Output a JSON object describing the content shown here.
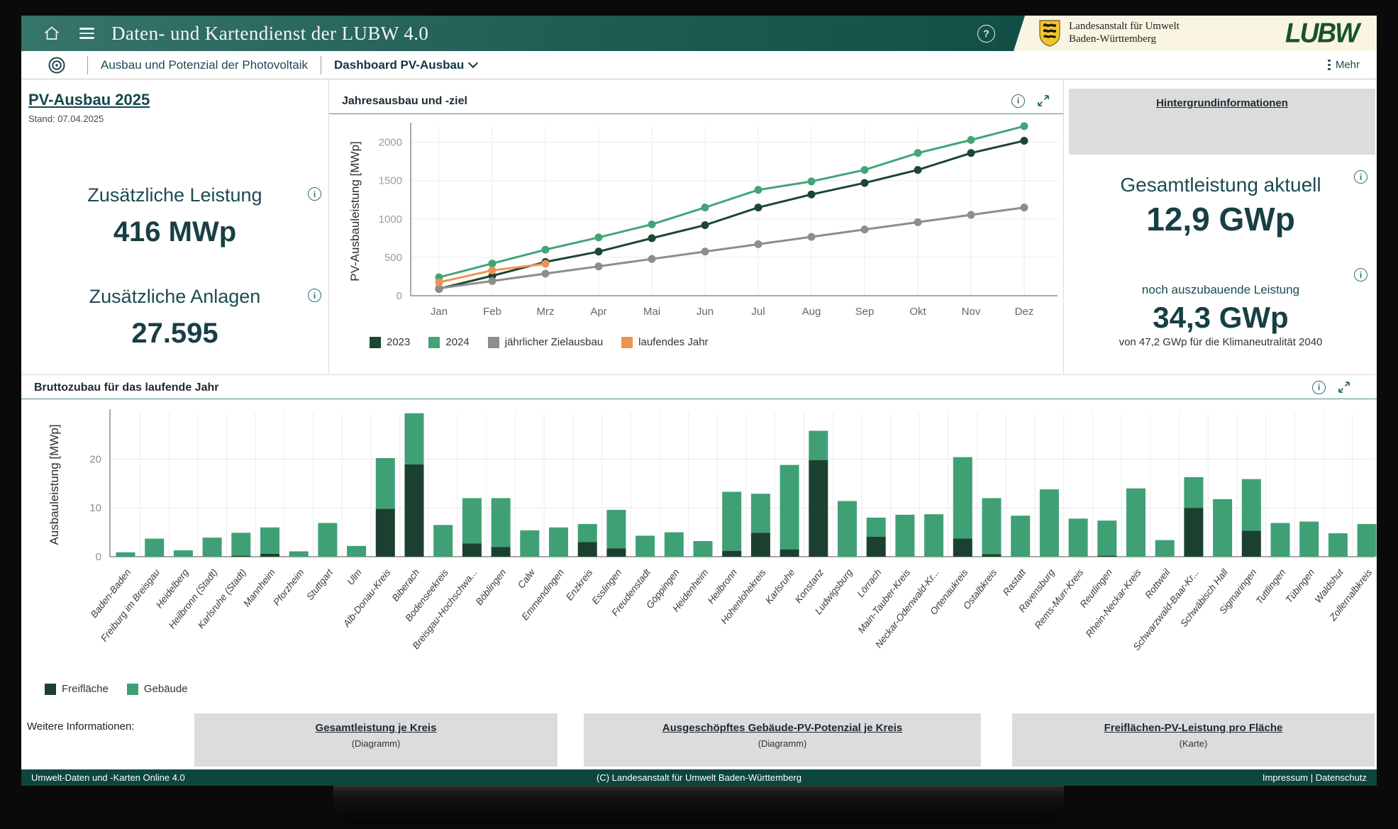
{
  "header": {
    "title": "Daten- und Kartendienst der LUBW 4.0",
    "help_glyph": "?",
    "org_line1": "Landesanstalt für Umwelt",
    "org_line2": "Baden-Württemberg",
    "logo_text": "LUBW"
  },
  "nav": {
    "breadcrumb": "Ausbau und Potenzial der Photovoltaik",
    "current": "Dashboard PV-Ausbau",
    "more_label": "Mehr"
  },
  "left_panel": {
    "title": "PV-Ausbau 2025",
    "stand": "Stand: 07.04.2025",
    "kpis": [
      {
        "label": "Zusätzliche Leistung",
        "value": "416 MWp"
      },
      {
        "label": "Zusätzliche Anlagen",
        "value": "27.595"
      }
    ],
    "info_glyph": "i"
  },
  "right_panel": {
    "background_link": "Hintergrundinformationen",
    "total_label": "Gesamtleistung aktuell",
    "total_value": "12,9 GWp",
    "remaining_label": "noch auszubauende Leistung",
    "remaining_value": "34,3 GWp",
    "remaining_sub": "von 47,2 GWp für die Klimaneutralität 2040"
  },
  "chart_data": [
    {
      "type": "line",
      "title": "Jahresausbau und -ziel",
      "ylabel": "PV-Ausbauleistung [MWp]",
      "ylim": [
        0,
        2200
      ],
      "yticks": [
        0,
        500,
        1000,
        1500,
        2000
      ],
      "grid": true,
      "legend_position": "bottom",
      "categories": [
        "Jan",
        "Feb",
        "Mrz",
        "Apr",
        "Mai",
        "Jun",
        "Jul",
        "Aug",
        "Sep",
        "Okt",
        "Nov",
        "Dez"
      ],
      "series": [
        {
          "name": "2023",
          "color": "#1b4733",
          "values": [
            90,
            260,
            440,
            575,
            750,
            920,
            1150,
            1320,
            1470,
            1640,
            1860,
            2020
          ]
        },
        {
          "name": "2024",
          "color": "#43a478",
          "values": [
            240,
            420,
            600,
            760,
            930,
            1150,
            1380,
            1490,
            1640,
            1860,
            2030,
            2210
          ]
        },
        {
          "name": "jährlicher Zielausbau",
          "color": "#8d8d8d",
          "values": [
            96,
            192,
            288,
            383,
            479,
            575,
            671,
            767,
            863,
            958,
            1054,
            1150
          ]
        },
        {
          "name": "laufendes Jahr",
          "color": "#ec9352",
          "values": [
            175,
            330,
            416,
            null,
            null,
            null,
            null,
            null,
            null,
            null,
            null,
            null
          ]
        }
      ]
    },
    {
      "type": "bar",
      "title": "Bruttozubau für das laufende Jahr",
      "ylabel": "Ausbauleistung [MWp]",
      "ylim": [
        0,
        29.5
      ],
      "yticks": [
        0,
        10,
        20
      ],
      "grid": true,
      "stacked": true,
      "legend_position": "bottom",
      "categories": [
        "Baden-Baden",
        "Freiburg im Breisgau",
        "Heidelberg",
        "Heilbronn (Stadt)",
        "Karlsruhe (Stadt)",
        "Mannheim",
        "Pforzheim",
        "Stuttgart",
        "Ulm",
        "Alb-Donau-Kreis",
        "Biberach",
        "Bodenseekreis",
        "Breisgau-Hochschwa...",
        "Böblingen",
        "Calw",
        "Emmendingen",
        "Enzkreis",
        "Esslingen",
        "Freudenstadt",
        "Göppingen",
        "Heidenheim",
        "Heilbronn",
        "Hohenlohekreis",
        "Karlsruhe",
        "Konstanz",
        "Ludwigsburg",
        "Lörrach",
        "Main-Tauber-Kreis",
        "Neckar-Odenwald-Kr...",
        "Ortenaukreis",
        "Ostalbkreis",
        "Rastatt",
        "Ravensburg",
        "Rems-Murr-Kreis",
        "Reutlingen",
        "Rhein-Neckar-Kreis",
        "Rottweil",
        "Schwarzwald-Baar-Kr...",
        "Schwäbisch Hall",
        "Sigmaringen",
        "Tuttlingen",
        "Tübingen",
        "Waldshut",
        "Zollernalbkreis"
      ],
      "series": [
        {
          "name": "Freifläche",
          "color": "#1c4030",
          "values": [
            0,
            0,
            0,
            0,
            0.2,
            0.6,
            0,
            0,
            0,
            9.8,
            18.9,
            0,
            2.7,
            2.0,
            0,
            0,
            3.0,
            1.7,
            0,
            0,
            0,
            1.2,
            4.9,
            1.5,
            19.8,
            0,
            4.1,
            0,
            0,
            3.7,
            0.5,
            0,
            0,
            0,
            0.2,
            0,
            0,
            10.0,
            0,
            5.3,
            0,
            0,
            0,
            0
          ]
        },
        {
          "name": "Gebäude",
          "color": "#3fa076",
          "values": [
            0.9,
            3.7,
            1.3,
            3.9,
            4.7,
            5.4,
            1.1,
            6.9,
            2.2,
            10.4,
            10.5,
            6.5,
            9.3,
            10.0,
            5.4,
            6.0,
            3.7,
            7.9,
            4.3,
            5.0,
            3.2,
            12.1,
            8.0,
            17.3,
            6.0,
            11.4,
            3.9,
            8.6,
            8.7,
            16.7,
            11.5,
            8.4,
            13.8,
            7.8,
            7.2,
            14.0,
            3.4,
            6.3,
            11.8,
            10.6,
            6.9,
            7.2,
            4.8,
            6.7
          ]
        }
      ]
    }
  ],
  "bottom": {
    "label": "Weitere Informationen:",
    "links": [
      {
        "title": "Gesamtleistung je Kreis",
        "subtitle": "(Diagramm)"
      },
      {
        "title": "Ausgeschöpftes Gebäude-PV-Potenzial je Kreis",
        "subtitle": "(Diagramm)"
      },
      {
        "title": "Freiflächen-PV-Leistung pro Fläche",
        "subtitle": "(Karte)"
      }
    ]
  },
  "footer": {
    "left": "Umwelt-Daten und -Karten Online 4.0",
    "center": "(C) Landesanstalt für Umwelt Baden-Württemberg",
    "right": "Impressum | Datenschutz"
  },
  "colors": {
    "accent_teal": "#0c463e",
    "icon_teal": "#2a6f6a",
    "green_2023": "#1b4733",
    "green_2024": "#43a478",
    "gray_target": "#8d8d8d",
    "orange_current": "#ec9352",
    "box_gray": "#dcdcdc",
    "brand_cream": "#f9f5e2"
  }
}
